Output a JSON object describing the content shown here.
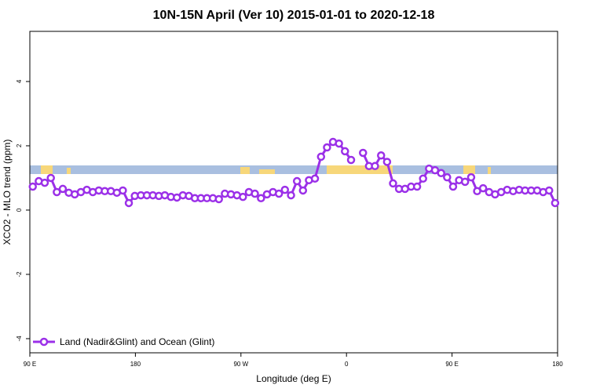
{
  "chart_data": {
    "type": "line",
    "title": "10N-15N April (Ver 10)   2015-01-01 to 2020-12-18",
    "xlabel": "Longitude (deg E)",
    "ylabel": "XCO2 - MLO trend (ppm)",
    "xlim": [
      90,
      540
    ],
    "ylim": [
      -4.44,
      5.56
    ],
    "xticks": [
      {
        "value": 90,
        "label": "90 E"
      },
      180,
      {
        "value": 270,
        "label": "90 W"
      },
      {
        "value": 360,
        "label": "0"
      },
      {
        "value": 450,
        "label": "90 E"
      },
      {
        "value": 540,
        "label": "180"
      }
    ],
    "yticks": [
      -4,
      -2,
      0,
      2,
      4
    ],
    "legend": "bottom-left",
    "x": [
      92.5,
      97.6,
      102.7,
      107.9,
      113.0,
      118.1,
      123.2,
      128.3,
      133.5,
      138.6,
      143.7,
      148.8,
      153.9,
      159.1,
      164.2,
      169.3,
      174.4,
      179.5,
      184.7,
      189.8,
      194.9,
      200.0,
      205.1,
      210.3,
      215.4,
      220.5,
      225.6,
      230.7,
      235.9,
      241.0,
      246.1,
      251.2,
      256.3,
      261.5,
      266.6,
      271.7,
      276.8,
      281.9,
      287.1,
      292.2,
      297.3,
      302.4,
      307.5,
      312.7,
      317.8,
      322.9,
      328.0,
      333.1,
      338.3,
      343.4,
      348.5,
      353.6,
      358.7,
      363.9,
      369.0,
      374.1,
      379.2,
      384.3,
      389.5,
      394.6,
      399.7,
      404.8,
      409.9,
      415.1,
      420.2,
      425.3,
      430.4,
      435.5,
      440.7,
      445.8,
      450.9,
      456.0,
      461.1,
      466.3,
      471.4,
      476.5,
      481.6,
      486.7,
      491.9,
      497.0,
      502.1,
      507.2,
      512.3,
      517.5,
      522.6,
      527.7,
      532.8,
      537.9
    ],
    "series": [
      {
        "name": "Land (Nadir&Glint) and Ocean (Glint)",
        "color": "#9b30e8",
        "values": [
          0.73,
          0.9,
          0.85,
          1.0,
          0.56,
          0.66,
          0.54,
          0.49,
          0.56,
          0.63,
          0.56,
          0.61,
          0.59,
          0.59,
          0.54,
          0.61,
          0.22,
          0.44,
          0.46,
          0.46,
          0.46,
          0.44,
          0.46,
          0.41,
          0.39,
          0.46,
          0.44,
          0.37,
          0.37,
          0.37,
          0.37,
          0.34,
          0.51,
          0.49,
          0.46,
          0.41,
          0.56,
          0.51,
          0.37,
          0.49,
          0.56,
          0.51,
          0.63,
          0.46,
          0.9,
          0.61,
          0.93,
          0.98,
          1.66,
          1.95,
          2.12,
          2.07,
          1.83,
          1.56,
          null,
          1.78,
          1.37,
          1.37,
          1.7,
          1.5,
          0.83,
          0.66,
          0.66,
          0.73,
          0.73,
          0.98,
          1.29,
          1.24,
          1.15,
          1.02,
          0.73,
          0.93,
          0.88,
          1.02,
          0.59,
          0.68,
          0.56,
          0.49,
          0.56,
          0.63,
          0.59,
          0.63,
          0.61,
          0.61,
          0.61,
          0.56,
          0.61,
          0.22
        ]
      }
    ]
  }
}
